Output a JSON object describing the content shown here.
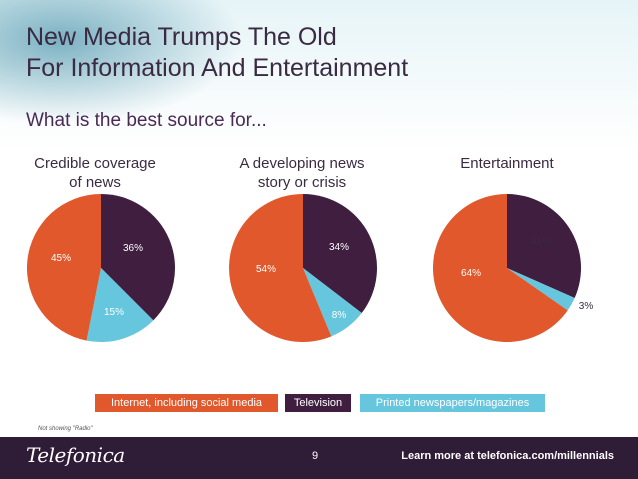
{
  "title_line1": "New Media Trumps The Old",
  "title_line2": "For Information And Entertainment",
  "subtitle": "What is the best source for...",
  "chart_data": [
    {
      "type": "pie",
      "title_line1": "Credible coverage",
      "title_line2": "of news",
      "slices": [
        {
          "name": "Television",
          "value": 36,
          "label": "36%"
        },
        {
          "name": "Printed newspapers/magazines",
          "value": 15,
          "label": "15%"
        },
        {
          "name": "Internet, including social media",
          "value": 45,
          "label": "45%"
        }
      ]
    },
    {
      "type": "pie",
      "title_line1": "A developing news",
      "title_line2": "story or crisis",
      "slices": [
        {
          "name": "Television",
          "value": 34,
          "label": "34%"
        },
        {
          "name": "Printed newspapers/magazines",
          "value": 8,
          "label": "8%"
        },
        {
          "name": "Internet, including social media",
          "value": 54,
          "label": "54%"
        }
      ]
    },
    {
      "type": "pie",
      "title_line1": "Entertainment",
      "title_line2": "",
      "slices": [
        {
          "name": "Television",
          "value": 31,
          "label": "31%"
        },
        {
          "name": "Printed newspapers/magazines",
          "value": 3,
          "label": "3%"
        },
        {
          "name": "Internet, including social media",
          "value": 64,
          "label": "64%"
        }
      ]
    }
  ],
  "legend": [
    {
      "label": "Internet, including social media",
      "color": "#e0582b"
    },
    {
      "label": "Television",
      "color": "#3f1e3f"
    },
    {
      "label": "Printed newspapers/magazines",
      "color": "#66c6de"
    }
  ],
  "colors": {
    "Television": "#3f1e3f",
    "Printed newspapers/magazines": "#66c6de",
    "Internet, including social media": "#e0582b"
  },
  "footnote": "Not showing \"Radio\"",
  "footer": {
    "logo": "Telefonica",
    "page_number": "9",
    "learn_more": "Learn more at telefonica.com/millennials"
  }
}
